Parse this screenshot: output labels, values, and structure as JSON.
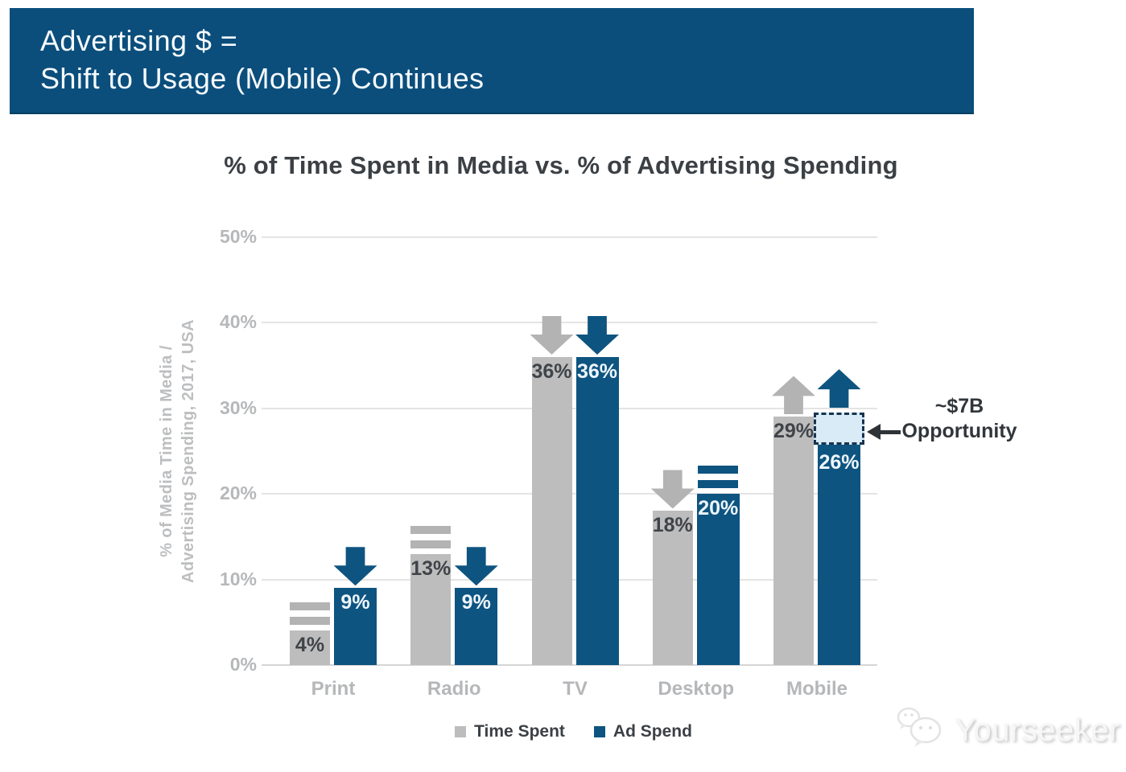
{
  "banner": {
    "line1": "Advertising $ =",
    "line2": "Shift to Usage (Mobile) Continues",
    "bg_color": "#0b4e7c",
    "text_color": "#f7fbfe"
  },
  "chart_data": {
    "type": "bar",
    "title": "% of Time Spent in Media vs. % of Advertising Spending",
    "ylabel_lines": [
      "% of Media Time in Media /",
      "Advertising Spending, 2017, USA"
    ],
    "categories": [
      "Print",
      "Radio",
      "TV",
      "Desktop",
      "Mobile"
    ],
    "series": [
      {
        "name": "Time Spent",
        "values": [
          4,
          13,
          36,
          18,
          29
        ],
        "color": "#bdbdbd",
        "marker_color": "#b3b3b3",
        "value_label_color": "#3f4449",
        "trends": [
          "flat",
          "flat",
          "down",
          "down",
          "up"
        ]
      },
      {
        "name": "Ad Spend",
        "values": [
          9,
          9,
          36,
          20,
          26
        ],
        "color": "#0e5480",
        "marker_color": "#0e5480",
        "value_label_color": "#eef6fc",
        "trends": [
          "down",
          "down",
          "down",
          "flat",
          "up"
        ]
      }
    ],
    "value_suffix": "%",
    "ylim": [
      0,
      50
    ],
    "yticks": [
      "0%",
      "10%",
      "20%",
      "30%",
      "40%",
      "50%"
    ],
    "grid": true,
    "legend_position": "bottom",
    "annotation": {
      "line1": "~$7B",
      "line2": "Opportunity",
      "category": "Mobile",
      "series": "Ad Spend",
      "box_from": 26,
      "box_to": 29.5,
      "box_fill": "#d9ebf7",
      "box_border": "#16344f",
      "arrow_color": "#2e3338"
    }
  },
  "watermark": {
    "text": "Yourseeker"
  },
  "colors": {
    "banner_bg": "#0b4e7c",
    "time_spent": "#bdbdbd",
    "ad_spend": "#0e5480",
    "grid": "#e4e4e4",
    "axis_text": "#b6b8ba",
    "title_text": "#3b4045",
    "annotation_text": "#31363b"
  }
}
